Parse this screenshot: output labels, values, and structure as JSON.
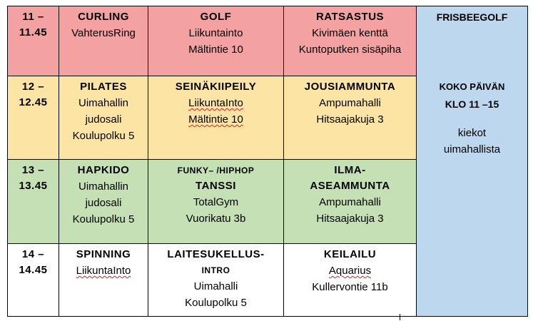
{
  "rows": [
    {
      "time_start": "11 –",
      "time_end": "11.45",
      "c1": {
        "title": "CURLING",
        "lines": [
          "VahterusRing"
        ]
      },
      "c2": {
        "title": "GOLF",
        "lines": [
          "Liikuntainto",
          "Mältintie 10"
        ]
      },
      "c3": {
        "title": "RATSASTUS",
        "lines": [
          "Kivimäen kenttä",
          "Kuntoputken sisäpiha"
        ]
      }
    },
    {
      "time_start": "12 –",
      "time_end": "12.45",
      "c1": {
        "title": "PILATES",
        "lines": [
          "Uimahallin",
          "judosali",
          "Koulupolku 5"
        ]
      },
      "c2": {
        "title": "SEINÄKIIPEILY",
        "lines": [
          "LiikuntaInto",
          "Mältintie 10"
        ]
      },
      "c3": {
        "title": "JOUSIAMMUNTA",
        "lines": [
          "Ampumahalli",
          "Hitsaajakuja 3"
        ]
      }
    },
    {
      "time_start": "13 –",
      "time_end": "13.45",
      "c1": {
        "title": "HAPKIDO",
        "lines": [
          "Uimahallin",
          "judosali",
          "Koulupolku 5"
        ]
      },
      "c2": {
        "title_small": "FUNKY– /HIPHOP",
        "title": "TANSSI",
        "lines": [
          "TotalGym",
          "Vuorikatu 3b"
        ]
      },
      "c3": {
        "title": "ILMA-",
        "title2": "ASEAMMUNTA",
        "lines": [
          "Ampumahalli",
          "Hitsaajakuja 3"
        ]
      }
    },
    {
      "time_start": "14 –",
      "time_end": "14.45",
      "c1": {
        "title": "SPINNING",
        "lines": [
          "LiikuntaInto"
        ]
      },
      "c2": {
        "title": "LAITESUKELLUS-",
        "title_small": "INTRO",
        "lines": [
          "Uimahalli",
          "Koulupolku 5"
        ]
      },
      "c3": {
        "title": "KEILAILU",
        "lines": [
          "Aquarius",
          "Kullervontie 11b"
        ]
      }
    }
  ],
  "side": {
    "title": "FRISBEEGOLF",
    "koko": "KOKO PÄIVÄN",
    "klo": "KLO 11 –15",
    "lines": [
      "kiekot",
      "uimahallista"
    ]
  },
  "colors": {
    "row1": "#f4a1a2",
    "row2": "#fbe4a4",
    "row3": "#c5e0b4",
    "row4": "#ffffff",
    "side": "#bdd7ee",
    "spellcheck": "#d81f1f"
  }
}
